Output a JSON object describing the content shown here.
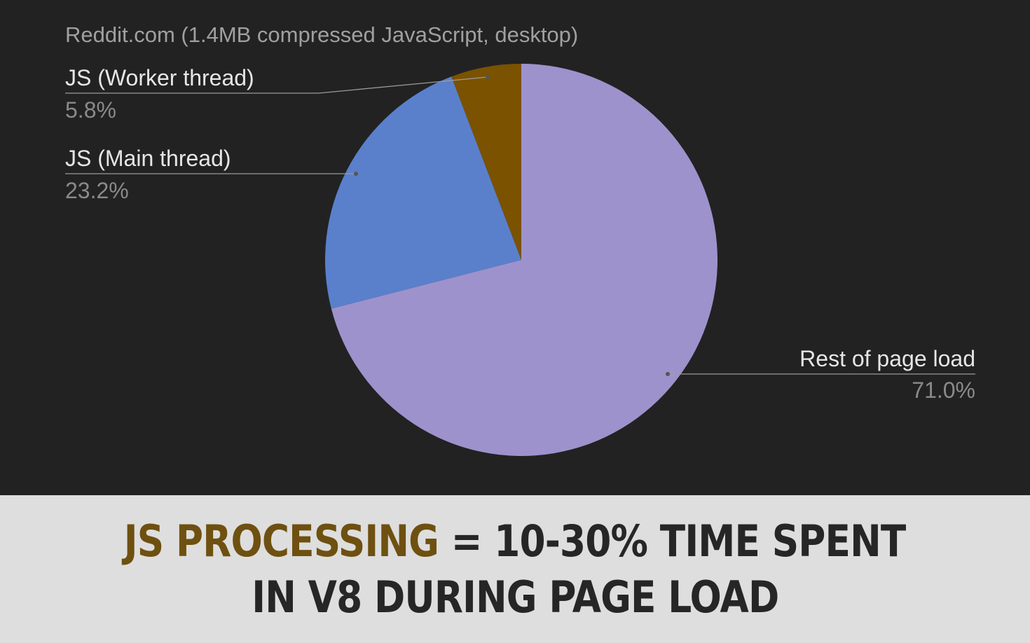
{
  "chart_data": {
    "type": "pie",
    "title": "Reddit.com (1.4MB compressed JavaScript, desktop)",
    "slices": [
      {
        "label": "Rest of page load",
        "value": 71.0,
        "display": "71.0%",
        "color": "#9e92cc"
      },
      {
        "label": "JS (Main thread)",
        "value": 23.2,
        "display": "23.2%",
        "color": "#5a80cc"
      },
      {
        "label": "JS (Worker thread)",
        "value": 5.8,
        "display": "5.8%",
        "color": "#7a5200"
      }
    ],
    "start_angle": "12 o'clock, clockwise",
    "legend": "none"
  },
  "banner": {
    "line1_accent": "JS PROCESSING",
    "line1_rest": " = 10-30% TIME SPENT",
    "line2": "IN V8 DURING PAGE LOAD",
    "accent_color": "#6e5010",
    "background": "#dedede"
  },
  "colors": {
    "background": "#222222"
  }
}
